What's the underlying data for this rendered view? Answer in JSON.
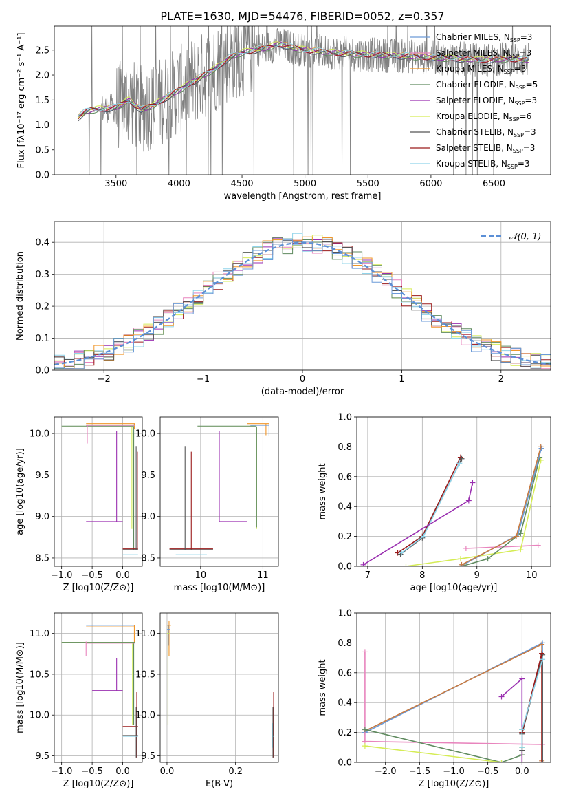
{
  "title": "PLATE=1630, MJD=54476, FIBERID=0052, z=0.357",
  "chart_data": [
    {
      "id": "spectrum",
      "type": "line",
      "xlabel": "wavelength [Angstrom, rest frame]",
      "ylabel": "Flux [fλ10⁻¹⁷ erg cm⁻² s⁻¹ A⁻¹]",
      "xlim": [
        3010,
        6950
      ],
      "ylim": [
        0,
        2.98
      ],
      "xticks": [
        3500,
        4000,
        4500,
        5000,
        5500,
        6000,
        6500
      ],
      "yticks": [
        0.0,
        0.5,
        1.0,
        1.5,
        2.0,
        2.5
      ],
      "legend": [
        {
          "label": "Chabrier MILES, N_SSP=3",
          "color": "#6c9bd8"
        },
        {
          "label": "Salpeter MILES, N_SSP=3",
          "color": "#e884bd"
        },
        {
          "label": "Kroupa MILES, N_SSP=3",
          "color": "#f0962a"
        },
        {
          "label": "Chabrier ELODIE, N_SSP=5",
          "color": "#5f8a5f"
        },
        {
          "label": "Salpeter ELODIE, N_SSP=3",
          "color": "#9a2fb0"
        },
        {
          "label": "Kroupa ELODIE, N_SSP=6",
          "color": "#d5ec55"
        },
        {
          "label": "Chabrier STELIB, N_SSP=3",
          "color": "#555555"
        },
        {
          "label": "Salpeter STELIB, N_SSP=3",
          "color": "#9b1b1b"
        },
        {
          "label": "Kroupa STELIB, N_SSP=3",
          "color": "#8fd4ea"
        }
      ],
      "legend_placement": "upper-right",
      "continuum_x": [
        3200,
        3250,
        3300,
        3400,
        3500,
        3600,
        3700,
        3800,
        3900,
        4000,
        4100,
        4200,
        4300,
        4400,
        4500,
        4600,
        4700,
        4800,
        4900,
        5000,
        5200,
        5400,
        5600,
        5800,
        6000,
        6200,
        6400,
        6600,
        6780
      ],
      "continuum_y": [
        1.15,
        1.25,
        1.3,
        1.32,
        1.35,
        1.5,
        1.3,
        1.4,
        1.55,
        1.7,
        1.85,
        2.0,
        2.15,
        2.35,
        2.45,
        2.5,
        2.55,
        2.62,
        2.55,
        2.5,
        2.45,
        2.42,
        2.4,
        2.38,
        2.35,
        2.33,
        2.3,
        2.32,
        2.3
      ]
    },
    {
      "id": "residuals",
      "type": "bar",
      "xlabel": "(data-model)/error",
      "ylabel": "Normed distribution",
      "xlim": [
        -2.5,
        2.5
      ],
      "ylim": [
        0,
        0.465
      ],
      "xticks": [
        -2,
        -1,
        0,
        1,
        2
      ],
      "yticks": [
        0.0,
        0.1,
        0.2,
        0.3,
        0.4
      ],
      "legend": [
        {
          "label": "𝒩(0, 1)",
          "color": "#5b8fd6"
        }
      ],
      "legend_placement": "upper-right",
      "bin_width": 0.1
    },
    {
      "id": "age-vs-Z",
      "type": "scatter",
      "xlabel": "Z [log10(Z/Z⊙)]",
      "ylabel": "age  [log10(age/yr)]",
      "xlim": [
        -1.12,
        0.32
      ],
      "ylim": [
        8.4,
        10.2
      ],
      "xticks": [
        -1.0,
        -0.5,
        0.0
      ],
      "yticks": [
        8.5,
        9.0,
        9.5,
        10.0
      ],
      "xtick_labels": [
        "−1.0",
        "−0.5",
        "0.0"
      ],
      "ytick_labels": [
        "8.5",
        "9.0",
        "9.5",
        "10.0"
      ]
    },
    {
      "id": "age-vs-mass",
      "type": "scatter",
      "xlabel": "mass [log10(M/M⊙)]",
      "ylabel": "",
      "xlim": [
        9.35,
        11.25
      ],
      "ylim": [
        8.4,
        10.2
      ],
      "xticks": [
        10,
        11
      ],
      "yticks": [
        8.5,
        9.0,
        9.5,
        10.0
      ],
      "xtick_labels": [
        "10",
        "11"
      ],
      "ytick_labels": [
        "8.5",
        "9.0",
        "9.5",
        "10.0"
      ]
    },
    {
      "id": "weight-vs-age",
      "type": "line",
      "xlabel": "age  [log10(age/yr)]",
      "ylabel": "mass weight",
      "xlim": [
        6.8,
        10.35
      ],
      "ylim": [
        0,
        1
      ],
      "xticks": [
        7,
        8,
        9,
        10
      ],
      "yticks": [
        0.0,
        0.2,
        0.4,
        0.6,
        0.8,
        1.0
      ],
      "xtick_labels": [
        "7",
        "8",
        "9",
        "10"
      ],
      "ytick_labels": [
        "0.0",
        "0.2",
        "0.4",
        "0.6",
        "0.8",
        "1.0"
      ],
      "series": [
        {
          "color": "#9b1b1b",
          "x": [
            7.55,
            8.0,
            8.7
          ],
          "y": [
            0.09,
            0.2,
            0.73
          ]
        },
        {
          "color": "#555555",
          "x": [
            7.6,
            8.0,
            8.72
          ],
          "y": [
            0.08,
            0.19,
            0.72
          ]
        },
        {
          "color": "#8fd4ea",
          "x": [
            7.62,
            8.02,
            8.68
          ],
          "y": [
            0.09,
            0.2,
            0.69
          ]
        },
        {
          "color": "#9a2fb0",
          "x": [
            6.92,
            8.85,
            8.92
          ],
          "y": [
            0.01,
            0.44,
            0.56
          ]
        },
        {
          "color": "#e884bd",
          "x": [
            8.8,
            10.12
          ],
          "y": [
            0.12,
            0.14
          ]
        },
        {
          "color": "#d5ec55",
          "x": [
            7.7,
            8.7,
            9.8,
            10.17
          ],
          "y": [
            0.0,
            0.05,
            0.11,
            0.71
          ]
        },
        {
          "color": "#5f8a5f",
          "x": [
            8.72,
            9.2,
            9.8,
            10.15
          ],
          "y": [
            0.0,
            0.05,
            0.22,
            0.73
          ]
        },
        {
          "color": "#6c9bd8",
          "x": [
            8.7,
            9.75,
            10.18
          ],
          "y": [
            0.0,
            0.21,
            0.79
          ]
        },
        {
          "color": "#c87a40",
          "x": [
            8.72,
            9.72,
            10.17
          ],
          "y": [
            0.01,
            0.2,
            0.8
          ]
        }
      ]
    },
    {
      "id": "mass-vs-Z",
      "type": "scatter",
      "xlabel": "Z [log10(Z/Z⊙)]",
      "ylabel": "mass [log10(M/M⊙)]",
      "xlim": [
        -1.12,
        0.32
      ],
      "ylim": [
        9.42,
        11.25
      ],
      "xticks": [
        -1.0,
        -0.5,
        0.0
      ],
      "yticks": [
        9.5,
        10.0,
        10.5,
        11.0
      ],
      "xtick_labels": [
        "−1.0",
        "−0.5",
        "0.0"
      ],
      "ytick_labels": [
        "9.5",
        "10.0",
        "10.5",
        "11.0"
      ]
    },
    {
      "id": "mass-vs-ebv",
      "type": "scatter",
      "xlabel": "E(B-V)",
      "ylabel": "",
      "xlim": [
        -0.02,
        0.325
      ],
      "ylim": [
        9.42,
        11.25
      ],
      "xticks": [
        0.0,
        0.2
      ],
      "yticks": [
        9.5,
        10.0,
        10.5,
        11.0
      ],
      "xtick_labels": [
        "0.0",
        "0.2"
      ],
      "ytick_labels": [
        "9.5",
        "10.0",
        "10.5",
        "11.0"
      ]
    },
    {
      "id": "weight-vs-Z",
      "type": "line",
      "xlabel": "Z [log10(Z/Z⊙)]",
      "ylabel": "mass weight",
      "xlim": [
        -2.42,
        0.42
      ],
      "ylim": [
        0,
        1
      ],
      "xticks": [
        -2.0,
        -1.5,
        -1.0,
        -0.5,
        0.0
      ],
      "yticks": [
        0.0,
        0.2,
        0.4,
        0.6,
        0.8,
        1.0
      ],
      "xtick_labels": [
        "−2.0",
        "−1.5",
        "−1.0",
        "−0.5",
        "0.0"
      ],
      "ytick_labels": [
        "0.0",
        "0.2",
        "0.4",
        "0.6",
        "0.8",
        "1.0"
      ],
      "series": [
        {
          "color": "#6c9bd8",
          "x": [
            -2.3,
            0.3,
            0.3
          ],
          "y": [
            0.2,
            0.8,
            0.0
          ]
        },
        {
          "color": "#c87a40",
          "x": [
            -2.3,
            0.29,
            0.29
          ],
          "y": [
            0.21,
            0.79,
            0.01
          ]
        },
        {
          "color": "#e884bd",
          "x": [
            -2.3,
            -2.3,
            0.3
          ],
          "y": [
            0.74,
            0.14,
            0.12
          ]
        },
        {
          "color": "#5f8a5f",
          "x": [
            -2.3,
            -0.3,
            0.0,
            0.0
          ],
          "y": [
            0.22,
            0.0,
            0.05,
            0.22
          ]
        },
        {
          "color": "#d5ec55",
          "x": [
            -2.3,
            -0.3,
            0.0,
            0.0
          ],
          "y": [
            0.11,
            0.0,
            0.0,
            0.1
          ]
        },
        {
          "color": "#9a2fb0",
          "x": [
            -0.3,
            0.0,
            0.0
          ],
          "y": [
            0.44,
            0.56,
            0.0
          ]
        },
        {
          "color": "#555555",
          "x": [
            0.0,
            0.0,
            0.3,
            0.3
          ],
          "y": [
            0.08,
            0.19,
            0.72,
            0.0
          ]
        },
        {
          "color": "#9b1b1b",
          "x": [
            0.0,
            0.29,
            0.29
          ],
          "y": [
            0.2,
            0.73,
            0.0
          ]
        },
        {
          "color": "#8fd4ea",
          "x": [
            0.0,
            0.0,
            0.3
          ],
          "y": [
            0.1,
            0.22,
            0.69
          ]
        }
      ]
    }
  ]
}
